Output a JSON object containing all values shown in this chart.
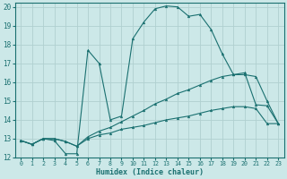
{
  "xlabel": "Humidex (Indice chaleur)",
  "bg_color": "#cce8e8",
  "grid_color": "#b0d0d0",
  "line_color": "#1a7070",
  "xlim": [
    -0.5,
    23.5
  ],
  "ylim": [
    12,
    20.2
  ],
  "yticks": [
    12,
    13,
    14,
    15,
    16,
    17,
    18,
    19,
    20
  ],
  "xticks": [
    0,
    1,
    2,
    3,
    4,
    5,
    6,
    7,
    8,
    9,
    10,
    11,
    12,
    13,
    14,
    15,
    16,
    17,
    18,
    19,
    20,
    21,
    22,
    23
  ],
  "series": [
    {
      "x": [
        0,
        1,
        2,
        3,
        4,
        5,
        6,
        7,
        8,
        9,
        10,
        11,
        12,
        13,
        14,
        15,
        16,
        17,
        18,
        19,
        20,
        21,
        22,
        23
      ],
      "y": [
        12.9,
        12.7,
        13.0,
        13.0,
        12.85,
        12.6,
        13.0,
        13.2,
        13.3,
        13.5,
        13.6,
        13.7,
        13.85,
        14.0,
        14.1,
        14.2,
        14.35,
        14.5,
        14.6,
        14.7,
        14.7,
        14.6,
        13.8,
        13.8
      ]
    },
    {
      "x": [
        0,
        1,
        2,
        3,
        4,
        5,
        6,
        7,
        8,
        9,
        10,
        11,
        12,
        13,
        14,
        15,
        16,
        17,
        18,
        19,
        20,
        21,
        22,
        23
      ],
      "y": [
        12.9,
        12.7,
        13.0,
        13.0,
        12.85,
        12.6,
        13.1,
        13.4,
        13.6,
        13.9,
        14.2,
        14.5,
        14.85,
        15.1,
        15.4,
        15.6,
        15.85,
        16.1,
        16.3,
        16.4,
        16.4,
        16.3,
        15.0,
        13.8
      ]
    },
    {
      "x": [
        0,
        1,
        2,
        3,
        4,
        5,
        6,
        7,
        8,
        9,
        10,
        11,
        12,
        13,
        14,
        15,
        16,
        17,
        18,
        19,
        20,
        21,
        22,
        23
      ],
      "y": [
        12.9,
        12.7,
        13.0,
        12.9,
        12.2,
        12.2,
        17.7,
        17.0,
        14.0,
        14.2,
        18.3,
        19.2,
        19.9,
        20.05,
        20.0,
        19.5,
        19.6,
        18.8,
        17.5,
        16.4,
        16.5,
        14.8,
        14.75,
        13.8
      ]
    }
  ]
}
